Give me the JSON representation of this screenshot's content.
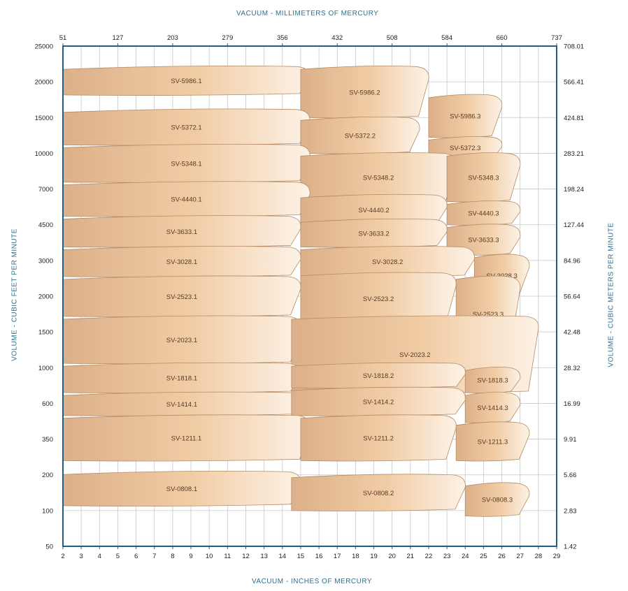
{
  "chart_data": {
    "type": "area",
    "title": "VACUUM - MILLIMETERS OF MERCURY",
    "xlabel": "VACUUM - INCHES OF MERCURY",
    "ylabel": "VOLUME - CUBIC FEET PER MINUTE",
    "y2label": "VOLUME - CUBIC METERS PER MINUTE",
    "x_ticks": [
      "2",
      "3",
      "4",
      "5",
      "6",
      "7",
      "8",
      "9",
      "10",
      "11",
      "12",
      "13",
      "14",
      "15",
      "16",
      "17",
      "18",
      "19",
      "20",
      "21",
      "22",
      "23",
      "24",
      "25",
      "26",
      "27",
      "28",
      "29"
    ],
    "x2_ticks": [
      "51",
      "127",
      "203",
      "279",
      "356",
      "432",
      "508",
      "584",
      "660",
      "737"
    ],
    "y_ticks": [
      "50",
      "100",
      "200",
      "350",
      "600",
      "1000",
      "1500",
      "2000",
      "3000",
      "4500",
      "7000",
      "10000",
      "15000",
      "20000",
      "25000"
    ],
    "y2_ticks": [
      "1.42",
      "2.83",
      "5.66",
      "9.91",
      "16.99",
      "28.32",
      "42.48",
      "56.64",
      "84.96",
      "127.44",
      "198.24",
      "283.21",
      "424.81",
      "566.41",
      "708.01"
    ],
    "xlim": [
      2,
      29
    ],
    "grid": true,
    "colors": {
      "band": "#f1cda6",
      "band_dark": "#dcb089",
      "band_light": "#fbeede",
      "outline": "#b48b66",
      "axis": "#1f5f86",
      "grid": "#c8c8c8",
      "title": "#2e6f8e"
    },
    "series": [
      {
        "name": "SV-5986.1",
        "x": [
          2,
          15.5
        ],
        "y": [
          18000,
          22000
        ]
      },
      {
        "name": "SV-5986.2",
        "x": [
          15,
          22
        ],
        "y": [
          15000,
          22000
        ]
      },
      {
        "name": "SV-5986.3",
        "x": [
          22,
          26
        ],
        "y": [
          12000,
          18000
        ]
      },
      {
        "name": "SV-5372.1",
        "x": [
          2,
          15.5
        ],
        "y": [
          11000,
          16000
        ]
      },
      {
        "name": "SV-5372.2",
        "x": [
          15,
          21.5
        ],
        "y": [
          10000,
          15000
        ]
      },
      {
        "name": "SV-5372.3",
        "x": [
          22,
          26
        ],
        "y": [
          9500,
          12000
        ]
      },
      {
        "name": "SV-5348.1",
        "x": [
          2,
          15.5
        ],
        "y": [
          7500,
          11000
        ]
      },
      {
        "name": "SV-5348.2",
        "x": [
          15,
          23.5
        ],
        "y": [
          6000,
          10000
        ]
      },
      {
        "name": "SV-5348.3",
        "x": [
          23,
          27
        ],
        "y": [
          6000,
          10000
        ]
      },
      {
        "name": "SV-4440.1",
        "x": [
          2,
          15.5
        ],
        "y": [
          5000,
          7500
        ]
      },
      {
        "name": "SV-4440.2",
        "x": [
          15,
          23
        ],
        "y": [
          4500,
          6500
        ]
      },
      {
        "name": "SV-4440.3",
        "x": [
          23,
          27
        ],
        "y": [
          4500,
          6000
        ]
      },
      {
        "name": "SV-3633.1",
        "x": [
          2,
          15
        ],
        "y": [
          3500,
          5000
        ]
      },
      {
        "name": "SV-3633.2",
        "x": [
          15,
          23
        ],
        "y": [
          3500,
          4800
        ]
      },
      {
        "name": "SV-3633.3",
        "x": [
          23,
          27
        ],
        "y": [
          3200,
          4500
        ]
      },
      {
        "name": "SV-3028.1",
        "x": [
          2,
          15
        ],
        "y": [
          2500,
          3500
        ]
      },
      {
        "name": "SV-3028.2",
        "x": [
          15,
          24.5
        ],
        "y": [
          2500,
          3500
        ]
      },
      {
        "name": "SV-3028.3",
        "x": [
          24.5,
          27.5
        ],
        "y": [
          2000,
          3200
        ]
      },
      {
        "name": "SV-2523.1",
        "x": [
          2,
          15
        ],
        "y": [
          1700,
          2500
        ]
      },
      {
        "name": "SV-2523.2",
        "x": [
          15,
          23.5
        ],
        "y": [
          1600,
          2600
        ]
      },
      {
        "name": "SV-2523.3",
        "x": [
          23.5,
          27
        ],
        "y": [
          1200,
          2500
        ]
      },
      {
        "name": "SV-2023.1",
        "x": [
          2,
          15
        ],
        "y": [
          1050,
          1700
        ]
      },
      {
        "name": "SV-2023.2",
        "x": [
          14.5,
          28
        ],
        "y": [
          700,
          1700
        ]
      },
      {
        "name": "SV-1818.1",
        "x": [
          2,
          15
        ],
        "y": [
          700,
          1050
        ]
      },
      {
        "name": "SV-1818.2",
        "x": [
          14.5,
          24
        ],
        "y": [
          750,
          1050
        ]
      },
      {
        "name": "SV-1818.3",
        "x": [
          24,
          27
        ],
        "y": [
          700,
          1000
        ]
      },
      {
        "name": "SV-1414.1",
        "x": [
          2,
          15
        ],
        "y": [
          500,
          700
        ]
      },
      {
        "name": "SV-1414.2",
        "x": [
          14.5,
          24
        ],
        "y": [
          500,
          750
        ]
      },
      {
        "name": "SV-1414.3",
        "x": [
          24,
          27
        ],
        "y": [
          450,
          700
        ]
      },
      {
        "name": "SV-1211.1",
        "x": [
          2,
          15.5
        ],
        "y": [
          250,
          500
        ]
      },
      {
        "name": "SV-1211.2",
        "x": [
          15,
          23.5
        ],
        "y": [
          250,
          500
        ]
      },
      {
        "name": "SV-1211.3",
        "x": [
          23.5,
          27.5
        ],
        "y": [
          250,
          450
        ]
      },
      {
        "name": "SV-0808.1",
        "x": [
          2,
          15
        ],
        "y": [
          110,
          210
        ]
      },
      {
        "name": "SV-0808.2",
        "x": [
          14.5,
          24
        ],
        "y": [
          100,
          200
        ]
      },
      {
        "name": "SV-0808.3",
        "x": [
          24,
          27.5
        ],
        "y": [
          90,
          170
        ]
      }
    ]
  }
}
